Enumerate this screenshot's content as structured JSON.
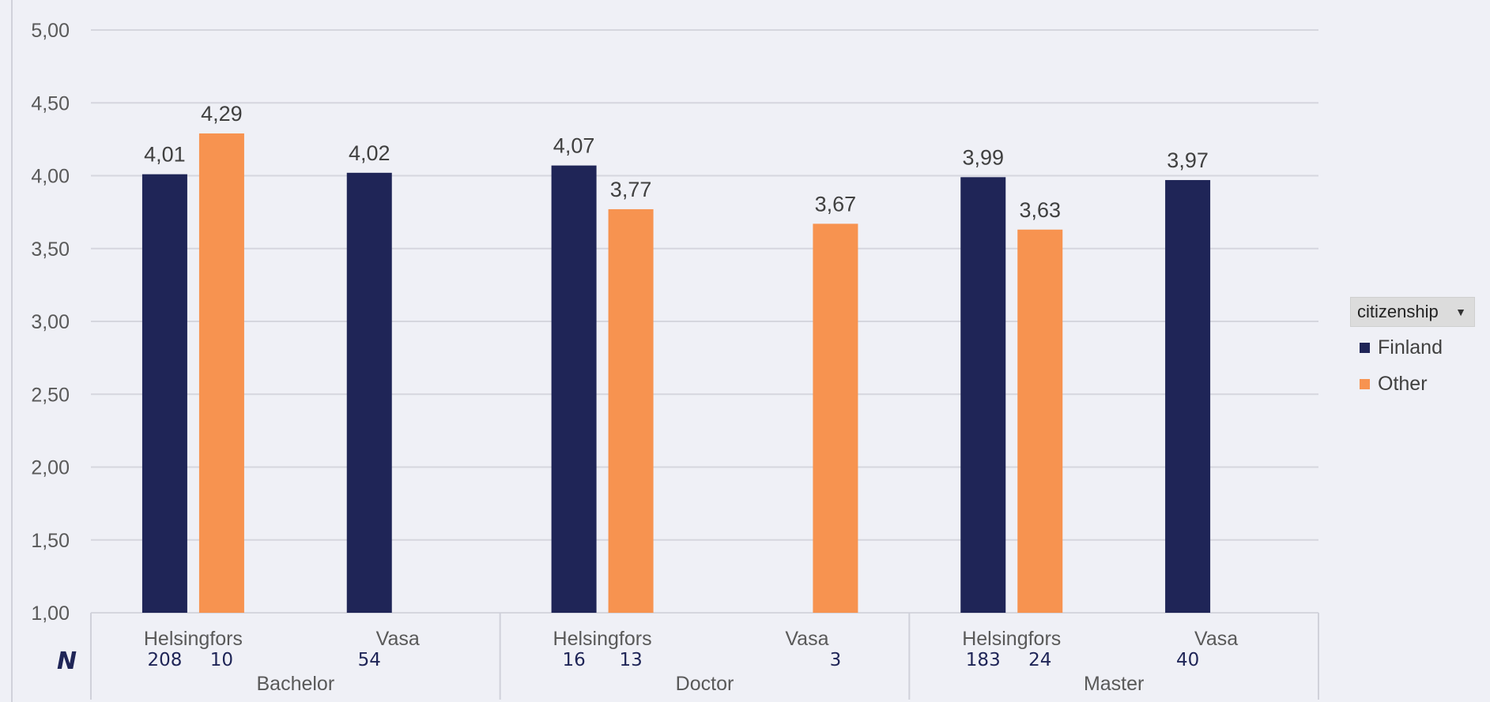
{
  "chart_data": {
    "type": "bar",
    "title": "",
    "xlabel": "",
    "ylabel": "",
    "ylim": [
      1.0,
      5.0
    ],
    "y_ticks": [
      "1,00",
      "1,50",
      "2,00",
      "2,50",
      "3,00",
      "3,50",
      "4,00",
      "4,50",
      "5,00"
    ],
    "grid": true,
    "legend_position": "right",
    "groups": [
      "Bachelor",
      "Doctor",
      "Master"
    ],
    "categories": [
      {
        "label": "Helsingfors",
        "group": "Bachelor"
      },
      {
        "label": "Vasa",
        "group": "Bachelor"
      },
      {
        "label": "Helsingfors",
        "group": "Doctor"
      },
      {
        "label": "Vasa",
        "group": "Doctor"
      },
      {
        "label": "Helsingfors",
        "group": "Master"
      },
      {
        "label": "Vasa",
        "group": "Master"
      }
    ],
    "series": [
      {
        "name": "Finland",
        "color": "#1f2557",
        "values": [
          4.01,
          4.02,
          4.07,
          null,
          3.99,
          3.97
        ],
        "labels": [
          "4,01",
          "4,02",
          "4,07",
          null,
          "3,99",
          "3,97"
        ],
        "n": [
          "208",
          "54",
          "16",
          null,
          "183",
          "40"
        ]
      },
      {
        "name": "Other",
        "color": "#f79350",
        "values": [
          4.29,
          null,
          3.77,
          3.67,
          3.63,
          null
        ],
        "labels": [
          "4,29",
          null,
          "3,77",
          "3,67",
          "3,63",
          null
        ],
        "n": [
          "10",
          null,
          "13",
          "3",
          "24",
          null
        ]
      }
    ],
    "n_marker": "N"
  },
  "legend": {
    "filter_label": "citizenship",
    "filter_arrow": "▼",
    "filter_icon": "dropdown-arrow-icon",
    "items": [
      {
        "label": "Finland",
        "color": "#1f2557"
      },
      {
        "label": "Other",
        "color": "#f79350"
      }
    ]
  }
}
